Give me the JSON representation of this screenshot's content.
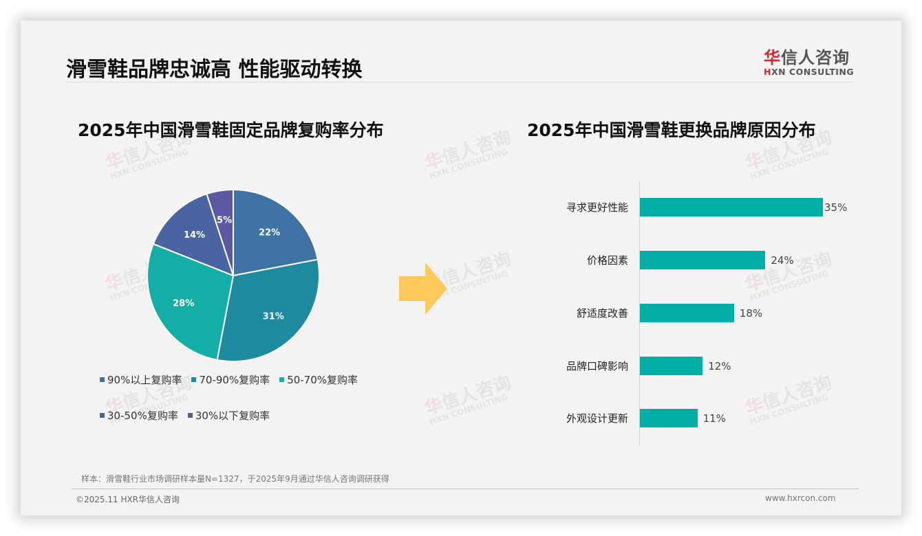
{
  "header": {
    "title": "滑雪鞋品牌忠诚高 性能驱动转换",
    "logo": {
      "cn_accent": "华",
      "cn_rest": "信人咨询",
      "en_accent": "H",
      "en_rest": "XN CONSULTING"
    }
  },
  "watermark": {
    "cn_accent": "华",
    "cn_rest": "信人咨询",
    "en": "HXN CONSULTING"
  },
  "arrow": {
    "icon": "right-arrow-icon",
    "color": "#ffc95c"
  },
  "chart_data": [
    {
      "type": "pie",
      "title": "2025年中国滑雪鞋固定品牌复购率分布",
      "categories": [
        "90%以上复购率",
        "70-90%复购率",
        "50-70%复购率",
        "30-50%复购率",
        "30%以下复购率"
      ],
      "values": [
        22,
        31,
        28,
        14,
        5
      ],
      "labels": [
        "22%",
        "31%",
        "28%",
        "14%",
        "5%"
      ],
      "colors": [
        "#3f73a6",
        "#1e8aa0",
        "#14aea6",
        "#4a64a2",
        "#5c58a4"
      ],
      "start_angle": "12 o'clock",
      "direction": "clockwise",
      "legend_position": "bottom"
    },
    {
      "type": "bar",
      "orientation": "horizontal",
      "title": "2025年中国滑雪鞋更换品牌原因分布",
      "categories": [
        "寻求更好性能",
        "价格因素",
        "舒适度改善",
        "品牌口碑影响",
        "外观设计更新"
      ],
      "values": [
        35,
        24,
        18,
        12,
        11
      ],
      "labels": [
        "35%",
        "24%",
        "18%",
        "12%",
        "11%"
      ],
      "color": "#00aea6",
      "xlabel": "",
      "ylabel": "",
      "grid": false
    }
  ],
  "footer": {
    "note": "样本：滑雪鞋行业市场调研样本量N=1327，于2025年9月通过华信人咨询调研获得",
    "copyright": "©2025.11 HXR华信人咨询",
    "website": "www.hxrcon.com"
  }
}
